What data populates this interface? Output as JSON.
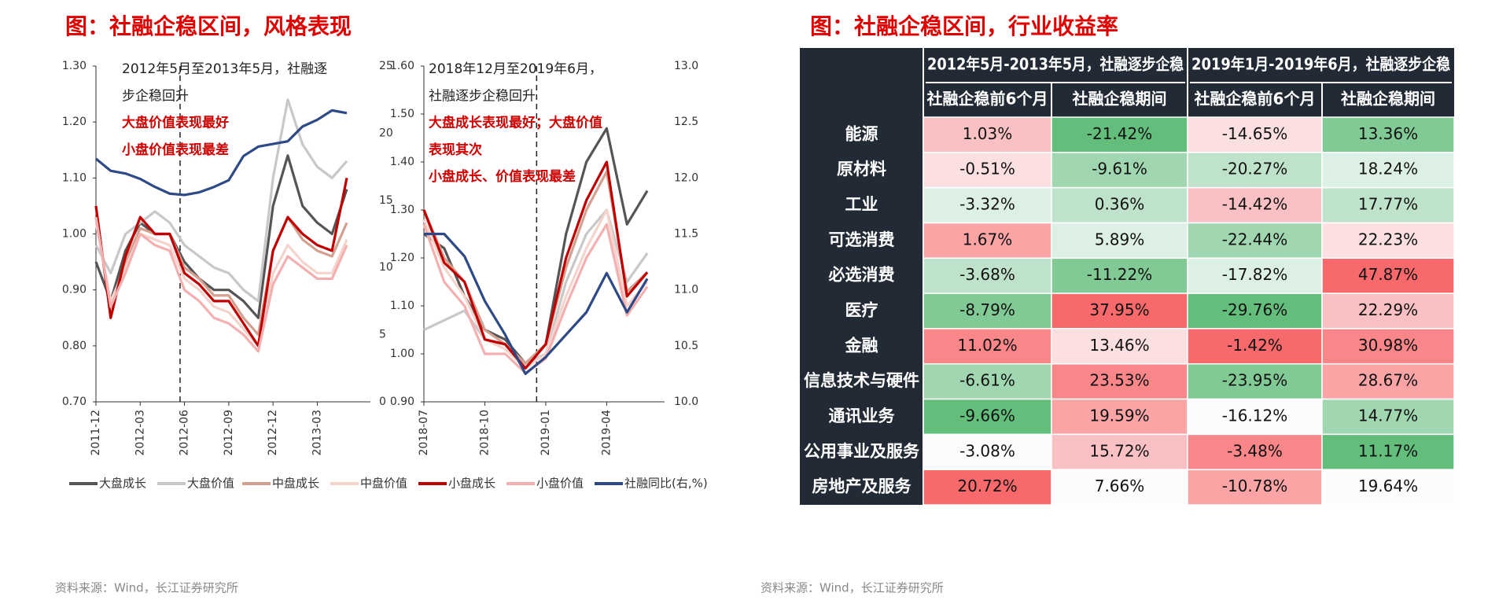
{
  "left_title": "图：社融企稳区间，风格表现",
  "right_title": "图：社融企稳区间，行业收益率",
  "chart_data": [
    {
      "type": "line",
      "categories": [
        "2011-12",
        null,
        null,
        "2012-03",
        null,
        null,
        "2012-06",
        null,
        null,
        "2012-09",
        null,
        null,
        "2012-12",
        null,
        null,
        "2013-03",
        null,
        null
      ],
      "ylim": [
        0.7,
        1.3
      ],
      "yticks": [
        {
          "value": 0.7,
          "label": "0.70"
        },
        {
          "value": 0.8,
          "label": "0.80"
        },
        {
          "value": 0.9,
          "label": "0.90"
        },
        {
          "value": 1.0,
          "label": "1.00"
        },
        {
          "value": 1.1,
          "label": "1.10"
        },
        {
          "value": 1.2,
          "label": "1.20"
        },
        {
          "value": 1.3,
          "label": "1.30"
        }
      ],
      "y2lim": [
        0,
        25
      ],
      "y2ticks": [
        0,
        5,
        10,
        15,
        20,
        25
      ],
      "annotations": [
        "2012年5月至2013年5月，社融逐",
        "步企稳回升",
        "大盘价值表现最好",
        "小盘价值表现最差"
      ],
      "series": [
        {
          "name": "大盘成长",
          "color": "#555555",
          "values": [
            0.95,
            0.88,
            0.97,
            1.02,
            1.0,
            1.0,
            0.95,
            0.92,
            0.9,
            0.9,
            0.88,
            0.85,
            1.05,
            1.14,
            1.05,
            1.02,
            1.0,
            1.08
          ]
        },
        {
          "name": "大盘价值",
          "color": "#c8c8c8",
          "values": [
            0.98,
            0.93,
            1.0,
            1.02,
            1.04,
            1.02,
            0.98,
            0.96,
            0.94,
            0.93,
            0.9,
            0.88,
            1.1,
            1.24,
            1.16,
            1.12,
            1.1,
            1.13
          ]
        },
        {
          "name": "中盘成长",
          "color": "#d4a090",
          "values": [
            1.03,
            0.87,
            0.95,
            1.01,
            1.0,
            1.0,
            0.94,
            0.92,
            0.89,
            0.89,
            0.85,
            0.82,
            0.97,
            1.03,
            0.99,
            0.97,
            0.96,
            1.02
          ]
        },
        {
          "name": "中盘价值",
          "color": "#f4d4cc",
          "values": [
            1.02,
            0.88,
            0.94,
            1.0,
            0.99,
            0.98,
            0.92,
            0.9,
            0.87,
            0.86,
            0.83,
            0.8,
            0.93,
            0.98,
            0.95,
            0.93,
            0.93,
            0.99
          ]
        },
        {
          "name": "小盘成长",
          "color": "#c00000",
          "values": [
            1.05,
            0.85,
            0.96,
            1.03,
            1.0,
            1.0,
            0.93,
            0.91,
            0.88,
            0.88,
            0.84,
            0.8,
            0.97,
            1.03,
            1.0,
            0.98,
            0.97,
            1.1
          ]
        },
        {
          "name": "小盘价值",
          "color": "#f4b0b0",
          "values": [
            1.03,
            0.87,
            0.93,
            1.0,
            0.98,
            0.97,
            0.9,
            0.88,
            0.85,
            0.84,
            0.82,
            0.79,
            0.91,
            0.96,
            0.94,
            0.92,
            0.92,
            0.98
          ]
        },
        {
          "name": "社融同比(右,%)",
          "color": "#2e4a86",
          "axis": "y2",
          "values": [
            18.1,
            17.2,
            17.0,
            16.6,
            16.0,
            15.5,
            15.4,
            15.6,
            16.0,
            16.5,
            18.3,
            19.0,
            19.2,
            19.4,
            20.5,
            21.0,
            21.7,
            21.5
          ]
        }
      ]
    },
    {
      "type": "line",
      "categories": [
        "2018-07",
        null,
        null,
        "2018-10",
        null,
        null,
        "2019-01",
        null,
        null,
        "2019-04",
        null,
        null
      ],
      "ylim": [
        0.9,
        1.6
      ],
      "yticks": [
        {
          "value": 0.9,
          "label": "0.90"
        },
        {
          "value": 1.0,
          "label": "1.00"
        },
        {
          "value": 1.1,
          "label": "1.10"
        },
        {
          "value": 1.2,
          "label": "1.20"
        },
        {
          "value": 1.3,
          "label": "1.30"
        },
        {
          "value": 1.4,
          "label": "1.40"
        },
        {
          "value": 1.5,
          "label": "1.50"
        },
        {
          "value": 1.6,
          "label": "1.60"
        }
      ],
      "y2lim": [
        10,
        13
      ],
      "y2ticks": [
        {
          "value": 10,
          "label": "10.0"
        },
        {
          "value": 10.5,
          "label": "10.5"
        },
        {
          "value": 11,
          "label": "11.0"
        },
        {
          "value": 11.5,
          "label": "11.5"
        },
        {
          "value": 12,
          "label": "12.0"
        },
        {
          "value": 12.5,
          "label": "12.5"
        },
        {
          "value": 13,
          "label": "13.0"
        }
      ],
      "annotations": [
        "2018年12月至2019年6月，",
        "社融逐步企稳回升",
        "大盘成长表现最好；大盘价值",
        "表现其次",
        "小盘成长、价值表现最差"
      ],
      "series": [
        {
          "color": "#555555",
          "values": [
            1.25,
            1.22,
            1.12,
            1.05,
            1.03,
            0.98,
            1.02,
            1.25,
            1.4,
            1.47,
            1.27,
            1.34
          ]
        },
        {
          "color": "#c8c8c8",
          "values": [
            1.05,
            1.07,
            1.09,
            1.03,
            1.02,
            0.98,
            1.0,
            1.15,
            1.25,
            1.3,
            1.15,
            1.21
          ]
        },
        {
          "color": "#d4a090",
          "values": [
            1.3,
            1.2,
            1.15,
            1.05,
            1.02,
            0.98,
            1.02,
            1.18,
            1.3,
            1.38,
            1.13,
            1.17
          ]
        },
        {
          "color": "#f4d4cc",
          "values": [
            1.28,
            1.18,
            1.12,
            1.03,
            1.01,
            0.97,
            1.0,
            1.12,
            1.22,
            1.3,
            1.1,
            1.15
          ]
        },
        {
          "color": "#c00000",
          "values": [
            1.3,
            1.19,
            1.15,
            1.03,
            1.02,
            0.97,
            1.02,
            1.2,
            1.32,
            1.4,
            1.12,
            1.17
          ]
        },
        {
          "color": "#f4b0b0",
          "values": [
            1.27,
            1.15,
            1.1,
            1.0,
            1.0,
            0.96,
            0.99,
            1.1,
            1.2,
            1.27,
            1.08,
            1.14
          ]
        },
        {
          "color": "#2e4a86",
          "axis": "y2",
          "values": [
            11.5,
            11.5,
            11.3,
            10.9,
            10.6,
            10.25,
            10.4,
            10.6,
            10.8,
            11.15,
            10.8,
            11.1
          ]
        }
      ]
    }
  ],
  "table": {
    "groups": [
      "2012年5月-2013年5月，社融逐步企稳",
      "2019年1月-2019年6月，社融逐步企稳"
    ],
    "subheaders": [
      "社融企稳前6个月",
      "社融企稳期间",
      "社融企稳前6个月",
      "社融企稳期间"
    ],
    "rows": [
      [
        "能源",
        "1.03%",
        "-21.42%",
        "-14.65%",
        "13.36%"
      ],
      [
        "原材料",
        "-0.51%",
        "-9.61%",
        "-20.27%",
        "18.24%"
      ],
      [
        "工业",
        "-3.32%",
        "0.36%",
        "-14.42%",
        "17.77%"
      ],
      [
        "可选消费",
        "1.67%",
        "5.89%",
        "-22.44%",
        "22.23%"
      ],
      [
        "必选消费",
        "-3.68%",
        "-11.22%",
        "-17.82%",
        "47.87%"
      ],
      [
        "医疗",
        "-8.79%",
        "37.95%",
        "-29.76%",
        "22.29%"
      ],
      [
        "金融",
        "11.02%",
        "13.46%",
        "-1.42%",
        "30.98%"
      ],
      [
        "信息技术与硬件",
        "-6.61%",
        "23.53%",
        "-23.95%",
        "28.67%"
      ],
      [
        "通讯业务",
        "-9.66%",
        "19.59%",
        "-16.12%",
        "14.77%"
      ],
      [
        "公用事业及服务",
        "-3.08%",
        "15.72%",
        "-3.48%",
        "11.17%"
      ],
      [
        "房地产及服务",
        "20.72%",
        "7.66%",
        "-10.78%",
        "19.64%"
      ]
    ]
  },
  "sources": [
    "资料来源：Wind，长江证券研究所",
    "资料来源：Wind，长江证券研究所"
  ]
}
